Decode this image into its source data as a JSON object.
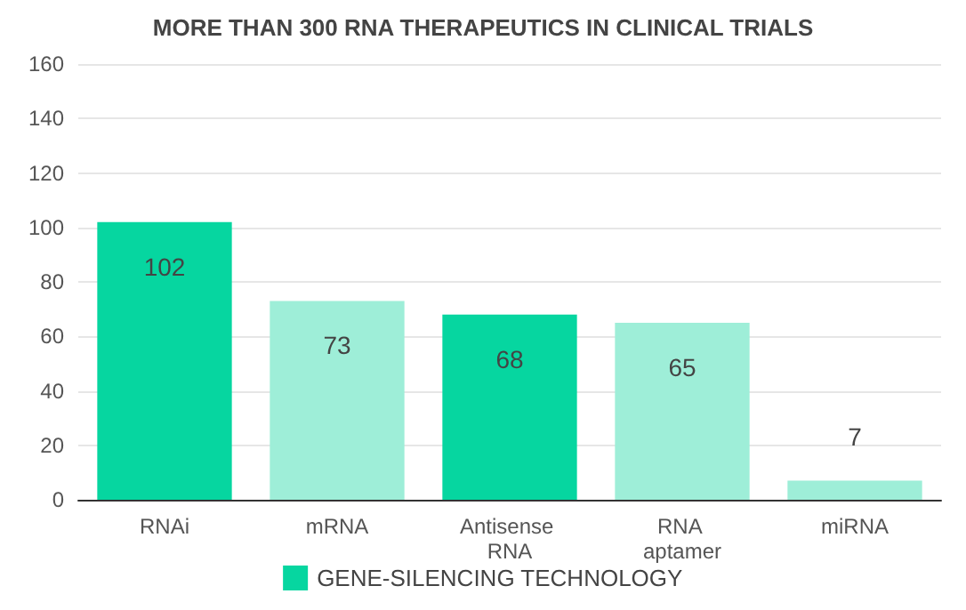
{
  "chart_data": {
    "type": "bar",
    "title": "MORE THAN 300 RNA THERAPEUTICS IN CLINICAL TRIALS",
    "categories": [
      "RNAi",
      "mRNA",
      "Antisense RNA",
      "RNA aptamer",
      "miRNA"
    ],
    "series": [
      {
        "name": "GENE-SILENCING TECHNOLOGY",
        "color": "#06d6a0",
        "values": [
          102,
          null,
          68,
          null,
          null
        ]
      },
      {
        "color": "#9eeed8",
        "values": [
          null,
          73,
          null,
          65,
          7
        ]
      }
    ],
    "ylim": [
      0,
      160
    ],
    "yticks": [
      0,
      20,
      40,
      60,
      80,
      100,
      120,
      140,
      160
    ],
    "grid": "y",
    "legend": "bottom",
    "data_labels": true
  }
}
